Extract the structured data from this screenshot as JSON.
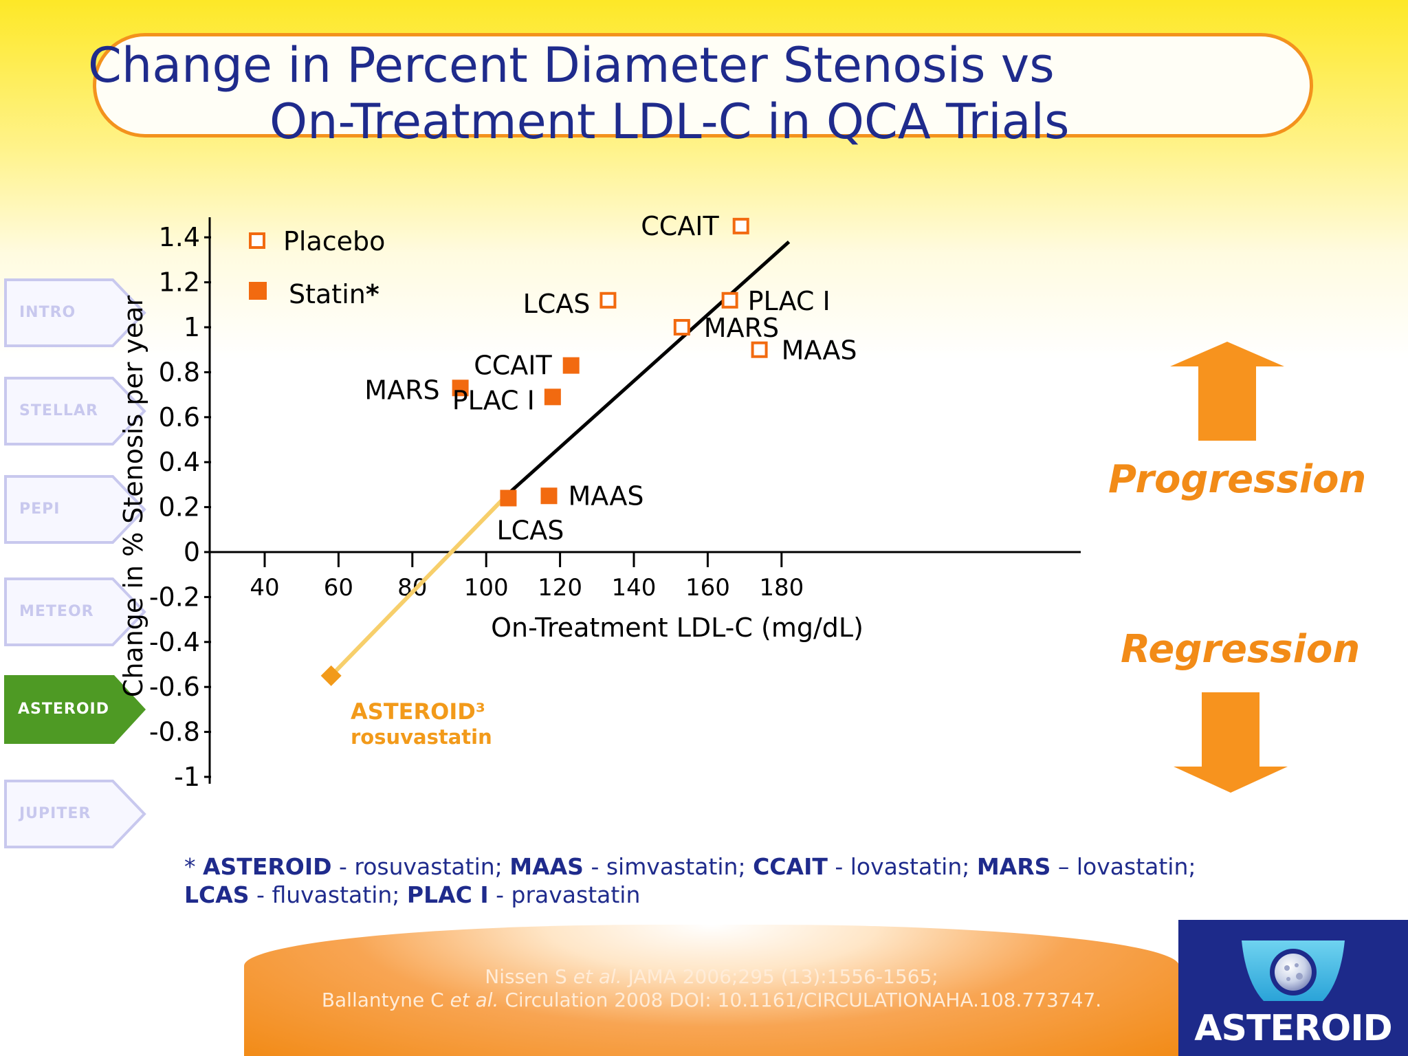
{
  "title": {
    "line1": "Change in Percent Diameter Stenosis vs",
    "line2": "On-Treatment  LDL-C in QCA Trials"
  },
  "nav": {
    "items": [
      {
        "label": "INTRO",
        "active": false
      },
      {
        "label": "STELLAR",
        "active": false
      },
      {
        "label": "PEPI",
        "active": false
      },
      {
        "label": "METEOR",
        "active": false
      },
      {
        "label": "ASTEROID",
        "active": true
      },
      {
        "label": "JUPITER",
        "active": false
      }
    ]
  },
  "colors": {
    "title": "#1f2b8c",
    "accent_orange": "#f28b17",
    "placebo_stroke": "#f26a10",
    "statin_fill": "#f26a10",
    "asteroid": "#f29a1a",
    "asteroid_line": "#f7cf6b",
    "nav_active": "#4e9a24",
    "nav_inactive_stroke": "#c8c8ee",
    "logo_bg": "#1d2a8a"
  },
  "chart_data": {
    "type": "scatter",
    "xlabel": "On-Treatment LDL-C (mg/dL)",
    "ylabel": "Change in % Stenosis per year",
    "xlim": [
      30,
      190
    ],
    "ylim": [
      -1,
      1.5
    ],
    "xticks": [
      40,
      60,
      80,
      100,
      120,
      140,
      160,
      180
    ],
    "xtick_labels": [
      "40",
      "60",
      "80",
      "100",
      "120",
      "140",
      "160",
      "180"
    ],
    "yticks": [
      1.4,
      1.2,
      1,
      0.8,
      0.6,
      0.4,
      0.2,
      0,
      -0.2,
      -0.4,
      -0.6,
      -0.8,
      -1
    ],
    "ytick_labels": [
      "1.4",
      "1.2",
      "1",
      "0.8",
      "0.6",
      "0.4",
      "0.2",
      "0",
      "-0.2",
      "-0.4",
      "-0.6",
      "-0.8",
      "-1"
    ],
    "legend": [
      {
        "label": "Placebo",
        "marker": "open-square"
      },
      {
        "label": "Statin",
        "marker": "filled-square",
        "suffix": "*"
      }
    ],
    "legend_position": "top-left",
    "series": [
      {
        "name": "Placebo",
        "marker": "open-square",
        "points": [
          {
            "label": "CCAIT",
            "x": 169,
            "y": 1.45
          },
          {
            "label": "LCAS",
            "x": 133,
            "y": 1.12
          },
          {
            "label": "PLAC I",
            "x": 166,
            "y": 1.12
          },
          {
            "label": "MARS",
            "x": 153,
            "y": 1.0
          },
          {
            "label": "MAAS",
            "x": 174,
            "y": 0.9
          }
        ]
      },
      {
        "name": "Statin",
        "marker": "filled-square",
        "points": [
          {
            "label": "CCAIT",
            "x": 123,
            "y": 0.83
          },
          {
            "label": "MARS",
            "x": 93,
            "y": 0.73
          },
          {
            "label": "PLAC I",
            "x": 118,
            "y": 0.69
          },
          {
            "label": "LCAS",
            "x": 106,
            "y": 0.24
          },
          {
            "label": "MAAS",
            "x": 117,
            "y": 0.25
          }
        ]
      },
      {
        "name": "ASTEROID",
        "marker": "diamond",
        "points": [
          {
            "label": "ASTEROID³",
            "sublabel": "rosuvastatin",
            "x": 58,
            "y": -0.55
          }
        ]
      }
    ],
    "regression_line": {
      "x": [
        106,
        182
      ],
      "y": [
        0.26,
        1.38
      ]
    },
    "extrapolation_line": {
      "x": [
        58,
        106
      ],
      "y": [
        -0.55,
        0.26
      ]
    }
  },
  "annotations": {
    "progression": "Progression",
    "regression": "Regression"
  },
  "footnote": {
    "star": "*",
    "parts": [
      {
        "name": "ASTEROID",
        "drug": " - rosuvastatin; "
      },
      {
        "name": "MAAS",
        "drug": " - simvastatin; "
      },
      {
        "name": "CCAIT",
        "drug": " - lovastatin; "
      },
      {
        "name": "MARS",
        "drug": " – lovastatin;"
      },
      {
        "name": "LCAS",
        "drug": " -  fluvastatin; "
      },
      {
        "name": "PLAC I",
        "drug": " - pravastatin"
      }
    ]
  },
  "citation": {
    "line1_a": "Nissen S ",
    "line1_em": "et al.",
    "line1_b": " JAMA 2006;295 (13):1556-1565;",
    "line2_a": "Ballantyne C  ",
    "line2_em": "et al.",
    "line2_b": " Circulation 2008 DOI: 10.1161/CIRCULATIONAHA.108.773747."
  },
  "logo": {
    "text": "ASTEROID",
    "icon": "asteroid-logo-icon"
  }
}
